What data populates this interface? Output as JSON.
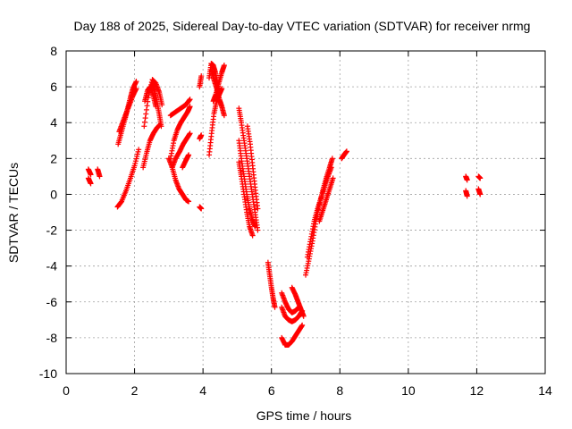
{
  "chart_data": {
    "type": "scatter",
    "title": "Day 188 of 2025, Sidereal Day-to-day VTEC variation (SDTVAR) for receiver nrmg",
    "xlabel": "GPS time / hours",
    "ylabel": "SDTVAR / TECUs",
    "xlim": [
      0,
      14
    ],
    "ylim": [
      -10,
      8
    ],
    "x_ticks": [
      "0",
      "2",
      "4",
      "6",
      "8",
      "10",
      "12",
      "14"
    ],
    "y_ticks": [
      "-10",
      "-8",
      "-6",
      "-4",
      "-2",
      "0",
      "2",
      "4",
      "6",
      "8"
    ],
    "grid": true,
    "marker": "plus",
    "series": [
      {
        "color": "#ff0000",
        "segments": [
          {
            "x": [
              0.65,
              0.72
            ],
            "y": [
              1.4,
              1.1
            ]
          },
          {
            "x": [
              0.65,
              0.72
            ],
            "y": [
              0.9,
              0.6
            ]
          },
          {
            "x": [
              0.92,
              0.98
            ],
            "y": [
              1.4,
              1.0
            ]
          },
          {
            "x": [
              1.52,
              1.62,
              1.72,
              1.8,
              1.88,
              1.95,
              2.05
            ],
            "y": [
              2.8,
              3.5,
              4.2,
              4.8,
              5.4,
              5.9,
              6.3
            ]
          },
          {
            "x": [
              1.55,
              1.65,
              1.75,
              1.85,
              1.95,
              2.05
            ],
            "y": [
              3.5,
              4.0,
              4.5,
              5.0,
              5.5,
              5.9
            ]
          },
          {
            "x": [
              1.5,
              1.62,
              1.75,
              1.88,
              2.0,
              2.12
            ],
            "y": [
              -0.7,
              -0.4,
              0.2,
              0.9,
              1.6,
              2.5
            ]
          },
          {
            "x": [
              2.28,
              2.4,
              2.52,
              2.62,
              2.72,
              2.8
            ],
            "y": [
              3.8,
              5.4,
              6.4,
              6.2,
              5.7,
              5.0
            ]
          },
          {
            "x": [
              2.3,
              2.38,
              2.46,
              2.55,
              2.62
            ],
            "y": [
              5.2,
              5.8,
              6.0,
              5.5,
              4.9
            ]
          },
          {
            "x": [
              2.52,
              2.58,
              2.65,
              2.72,
              2.78
            ],
            "y": [
              6.2,
              5.8,
              5.2,
              4.5,
              3.8
            ]
          },
          {
            "x": [
              2.25,
              2.35,
              2.45,
              2.55,
              2.65,
              2.75
            ],
            "y": [
              1.5,
              2.3,
              3.0,
              3.4,
              3.7,
              3.9
            ]
          },
          {
            "x": [
              3.05,
              3.2,
              3.35,
              3.5,
              3.62
            ],
            "y": [
              4.4,
              4.6,
              4.8,
              5.0,
              5.3
            ]
          },
          {
            "x": [
              3.05,
              3.15,
              3.25,
              3.35,
              3.45,
              3.55,
              3.62
            ],
            "y": [
              2.0,
              3.0,
              3.6,
              4.0,
              4.3,
              4.6,
              4.9
            ]
          },
          {
            "x": [
              3.1,
              3.2,
              3.32,
              3.42,
              3.52,
              3.62
            ],
            "y": [
              1.5,
              2.0,
              2.4,
              2.8,
              3.1,
              3.4
            ]
          },
          {
            "x": [
              3.0,
              3.1,
              3.2,
              3.3,
              3.4,
              3.5,
              3.58
            ],
            "y": [
              2.0,
              1.5,
              0.8,
              0.3,
              0.0,
              -0.3,
              -0.4
            ]
          },
          {
            "x": [
              3.4,
              3.5,
              3.58
            ],
            "y": [
              1.5,
              1.9,
              2.2
            ]
          },
          {
            "x": [
              3.9,
              3.95
            ],
            "y": [
              -0.7,
              -0.8
            ]
          },
          {
            "x": [
              3.9,
              3.95
            ],
            "y": [
              3.1,
              3.3
            ]
          },
          {
            "x": [
              3.9,
              3.95
            ],
            "y": [
              6.0,
              6.6
            ]
          },
          {
            "x": [
              4.18,
              4.24,
              4.3,
              4.36,
              4.42,
              4.48
            ],
            "y": [
              6.5,
              7.3,
              7.2,
              6.8,
              6.2,
              5.6
            ]
          },
          {
            "x": [
              4.18,
              4.25,
              4.32,
              4.4,
              4.48,
              4.55
            ],
            "y": [
              2.2,
              3.4,
              4.5,
              5.2,
              5.6,
              5.9
            ]
          },
          {
            "x": [
              4.25,
              4.32,
              4.4,
              4.48,
              4.55,
              4.62
            ],
            "y": [
              6.9,
              6.4,
              5.9,
              5.3,
              4.9,
              4.4
            ]
          },
          {
            "x": [
              4.3,
              4.38,
              4.46,
              4.55,
              4.62
            ],
            "y": [
              5.2,
              5.6,
              6.2,
              6.8,
              7.2
            ]
          },
          {
            "x": [
              5.05,
              5.12,
              5.2,
              5.28,
              5.36,
              5.44,
              5.52,
              5.6
            ],
            "y": [
              4.8,
              4.0,
              3.0,
              2.0,
              1.0,
              0.0,
              -1.0,
              -2.0
            ]
          },
          {
            "x": [
              5.05,
              5.12,
              5.2,
              5.28,
              5.36,
              5.44,
              5.52
            ],
            "y": [
              3.0,
              2.0,
              1.0,
              0.0,
              -0.8,
              -1.4,
              -1.8
            ]
          },
          {
            "x": [
              5.05,
              5.12,
              5.2,
              5.28,
              5.36,
              5.45
            ],
            "y": [
              1.8,
              1.0,
              0.0,
              -1.0,
              -1.8,
              -2.3
            ]
          },
          {
            "x": [
              5.3,
              5.38,
              5.45,
              5.52,
              5.6
            ],
            "y": [
              3.8,
              2.8,
              1.6,
              0.4,
              -0.8
            ]
          },
          {
            "x": [
              5.9,
              5.95,
              6.0,
              6.05,
              6.1
            ],
            "y": [
              -3.8,
              -4.5,
              -5.2,
              -5.8,
              -6.3
            ]
          },
          {
            "x": [
              6.3,
              6.4,
              6.5,
              6.6,
              6.7,
              6.8
            ],
            "y": [
              -5.5,
              -6.0,
              -6.4,
              -6.6,
              -6.5,
              -6.3
            ]
          },
          {
            "x": [
              6.3,
              6.4,
              6.5,
              6.6,
              6.7,
              6.8,
              6.9
            ],
            "y": [
              -6.3,
              -6.8,
              -7.0,
              -7.1,
              -7.0,
              -6.8,
              -6.5
            ]
          },
          {
            "x": [
              6.3,
              6.4,
              6.5,
              6.6,
              6.7,
              6.8,
              6.9
            ],
            "y": [
              -8.0,
              -8.4,
              -8.4,
              -8.2,
              -7.9,
              -7.6,
              -7.3
            ]
          },
          {
            "x": [
              6.6,
              6.7,
              6.78,
              6.86,
              6.94
            ],
            "y": [
              -5.2,
              -5.6,
              -6.0,
              -6.4,
              -6.8
            ]
          },
          {
            "x": [
              7.0,
              7.1,
              7.2,
              7.3,
              7.4,
              7.5,
              7.6,
              7.7,
              7.78
            ],
            "y": [
              -4.5,
              -3.6,
              -2.6,
              -1.5,
              -0.6,
              0.2,
              0.9,
              1.5,
              2.0
            ]
          },
          {
            "x": [
              7.05,
              7.15,
              7.25,
              7.35,
              7.45,
              7.55,
              7.65,
              7.75
            ],
            "y": [
              -3.5,
              -2.5,
              -1.5,
              -0.8,
              -0.2,
              0.4,
              1.0,
              1.5
            ]
          },
          {
            "x": [
              7.4,
              7.5,
              7.6,
              7.7,
              7.8
            ],
            "y": [
              -1.5,
              -0.9,
              -0.3,
              0.3,
              0.9
            ]
          },
          {
            "x": [
              8.05,
              8.12,
              8.2
            ],
            "y": [
              2.0,
              2.2,
              2.4
            ]
          },
          {
            "x": [
              11.68,
              11.72
            ],
            "y": [
              1.0,
              0.8
            ]
          },
          {
            "x": [
              11.68,
              11.72
            ],
            "y": [
              0.2,
              -0.1
            ]
          },
          {
            "x": [
              12.05,
              12.1
            ],
            "y": [
              1.0,
              0.9
            ]
          },
          {
            "x": [
              12.05,
              12.1
            ],
            "y": [
              0.3,
              0.0
            ]
          }
        ]
      }
    ]
  }
}
